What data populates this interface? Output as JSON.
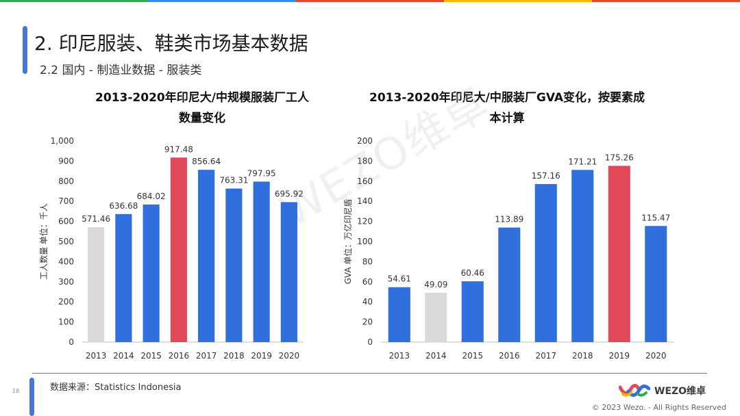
{
  "colors": {
    "accent": "#4a76d8",
    "bar_default": "#2f6fde",
    "bar_low": "#d9d9d9",
    "bar_high": "#e3485a",
    "topbar": [
      "#34a853",
      "#4285f4",
      "#ea4335",
      "#fbbc05",
      "#ea4335"
    ]
  },
  "header": {
    "title": "2. 印尼服装、鞋类市场基本数据",
    "subtitle": "2.2 国内 - 制造业数据 - 服装类"
  },
  "watermark": "WEZO维卓",
  "chart_data": [
    {
      "type": "bar",
      "title_line1": "2013-2020年印尼大/中规模服装厂工人",
      "title_line2": "数量变化",
      "ylabel": "工人数量 单位：千人",
      "ylim": [
        0,
        1000
      ],
      "yticks": [
        "0",
        "100",
        "200",
        "300",
        "400",
        "500",
        "600",
        "700",
        "800",
        "900",
        "1,000"
      ],
      "categories": [
        "2013",
        "2014",
        "2015",
        "2016",
        "2017",
        "2018",
        "2019",
        "2020"
      ],
      "values": [
        571.46,
        636.68,
        684.02,
        917.48,
        856.64,
        763.31,
        797.95,
        695.92
      ],
      "labels": [
        "571.46",
        "636.68",
        "684.02",
        "917.48",
        "856.64",
        "763.31",
        "797.95",
        "695.92"
      ],
      "bar_colors": [
        "#d9d9d9",
        "#2f6fde",
        "#2f6fde",
        "#e3485a",
        "#2f6fde",
        "#2f6fde",
        "#2f6fde",
        "#2f6fde"
      ],
      "grid": false
    },
    {
      "type": "bar",
      "title_line1": "2013-2020年印尼大/中服装厂GVA变化，按要素成",
      "title_line2": "本计算",
      "ylabel": "GVA 单位：万亿印尼盾",
      "ylim": [
        0,
        200
      ],
      "yticks": [
        "0",
        "20",
        "40",
        "60",
        "80",
        "100",
        "120",
        "140",
        "160",
        "180",
        "200"
      ],
      "categories": [
        "2013",
        "2014",
        "2015",
        "2016",
        "2017",
        "2018",
        "2019",
        "2020"
      ],
      "values": [
        54.61,
        49.09,
        60.46,
        113.89,
        157.16,
        171.21,
        175.26,
        115.47
      ],
      "labels": [
        "54.61",
        "49.09",
        "60.46",
        "113.89",
        "157.16",
        "171.21",
        "175.26",
        "115.47"
      ],
      "bar_colors": [
        "#2f6fde",
        "#d9d9d9",
        "#2f6fde",
        "#2f6fde",
        "#2f6fde",
        "#2f6fde",
        "#e3485a",
        "#2f6fde"
      ],
      "grid": false
    }
  ],
  "footer": {
    "source": "数据来源：Statistics Indonesia",
    "page_number": "18",
    "brand": "WEZO维卓",
    "copyright": "© 2023 Wezo. - All Rights Reserved"
  }
}
